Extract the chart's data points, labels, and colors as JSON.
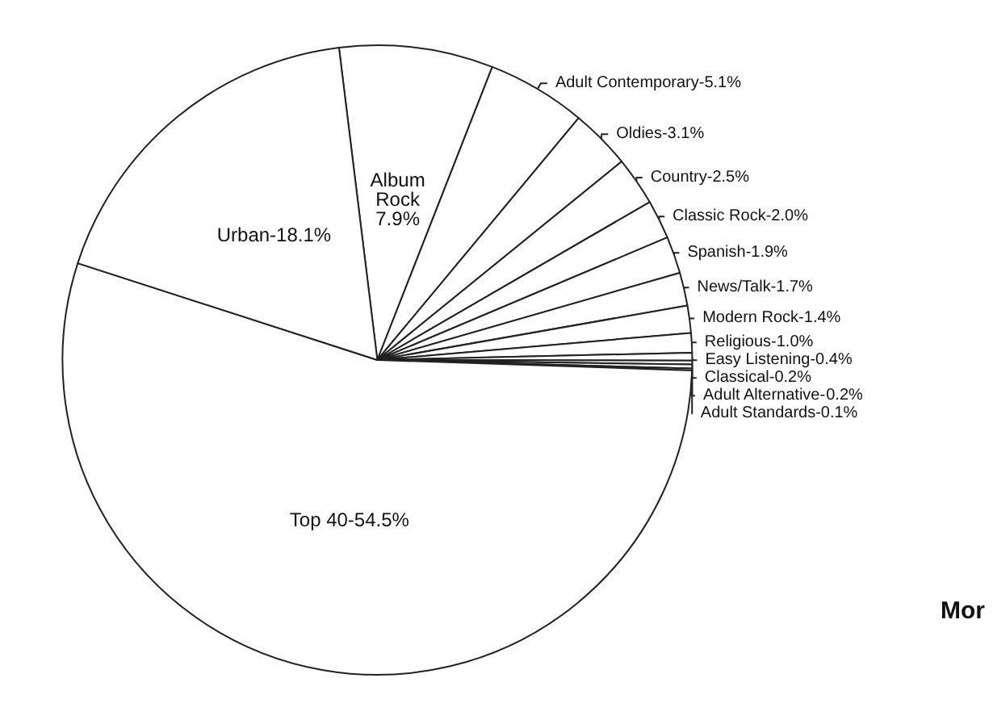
{
  "chart_data": {
    "type": "pie",
    "categories": [
      "Album Rock",
      "Adult Contemporary-",
      "Oldies-",
      "Country-",
      "Classic Rock-",
      "Spanish-",
      "News/Talk-",
      "Modern Rock-",
      "Religious-",
      "Easy Listening-",
      "Classical-",
      "Adult Alternative-",
      "Adult Standards-",
      "Top 40-",
      "Urban-"
    ],
    "values": [
      7.9,
      5.1,
      3.1,
      2.5,
      2.0,
      1.9,
      1.7,
      1.4,
      1.0,
      0.4,
      0.2,
      0.2,
      0.1,
      54.5,
      18.1
    ],
    "colors": [
      "#ffffff",
      "#ffffff",
      "#ffffff",
      "#ffffff",
      "#ffffff",
      "#ffffff",
      "#ffffff",
      "#ffffff",
      "#ffffff",
      "#ffffff",
      "#ffffff",
      "#ffffff",
      "#ffffff",
      "#ffffff",
      "#ffffff"
    ],
    "value_labels": [
      "7.9%",
      "5.1%",
      "3.1%",
      "2.5%",
      "2.0%",
      "1.9%",
      "1.7%",
      "1.4%",
      "1.0%",
      "0.4%",
      "0.2%",
      "0.2%",
      "0.1%",
      "54.5%",
      "18.1%"
    ],
    "legend": false,
    "annotations": [
      "Mor"
    ]
  }
}
